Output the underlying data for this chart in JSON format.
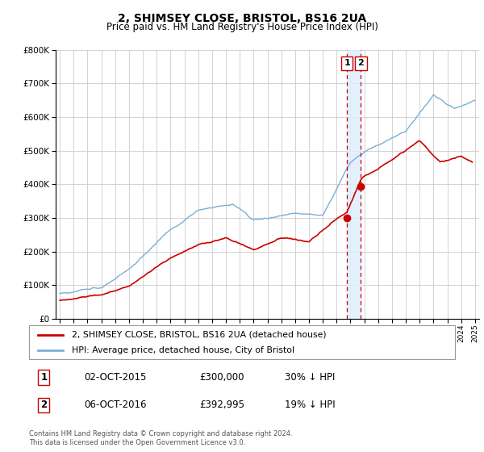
{
  "title": "2, SHIMSEY CLOSE, BRISTOL, BS16 2UA",
  "subtitle": "Price paid vs. HM Land Registry's House Price Index (HPI)",
  "legend_label_red": "2, SHIMSEY CLOSE, BRISTOL, BS16 2UA (detached house)",
  "legend_label_blue": "HPI: Average price, detached house, City of Bristol",
  "sale1_date": "02-OCT-2015",
  "sale1_price": 300000,
  "sale1_hpi_diff": "30% ↓ HPI",
  "sale2_date": "06-OCT-2016",
  "sale2_price": 392995,
  "sale2_hpi_diff": "19% ↓ HPI",
  "sale1_year": 2015.75,
  "sale2_year": 2016.75,
  "footer": "Contains HM Land Registry data © Crown copyright and database right 2024.\nThis data is licensed under the Open Government Licence v3.0.",
  "red_color": "#cc0000",
  "blue_color": "#7ab0d4",
  "vline_color": "#cc0000",
  "shade_color": "#ddeeff",
  "ylim": [
    0,
    800000
  ],
  "xlim_start": 1995,
  "xlim_end": 2025
}
